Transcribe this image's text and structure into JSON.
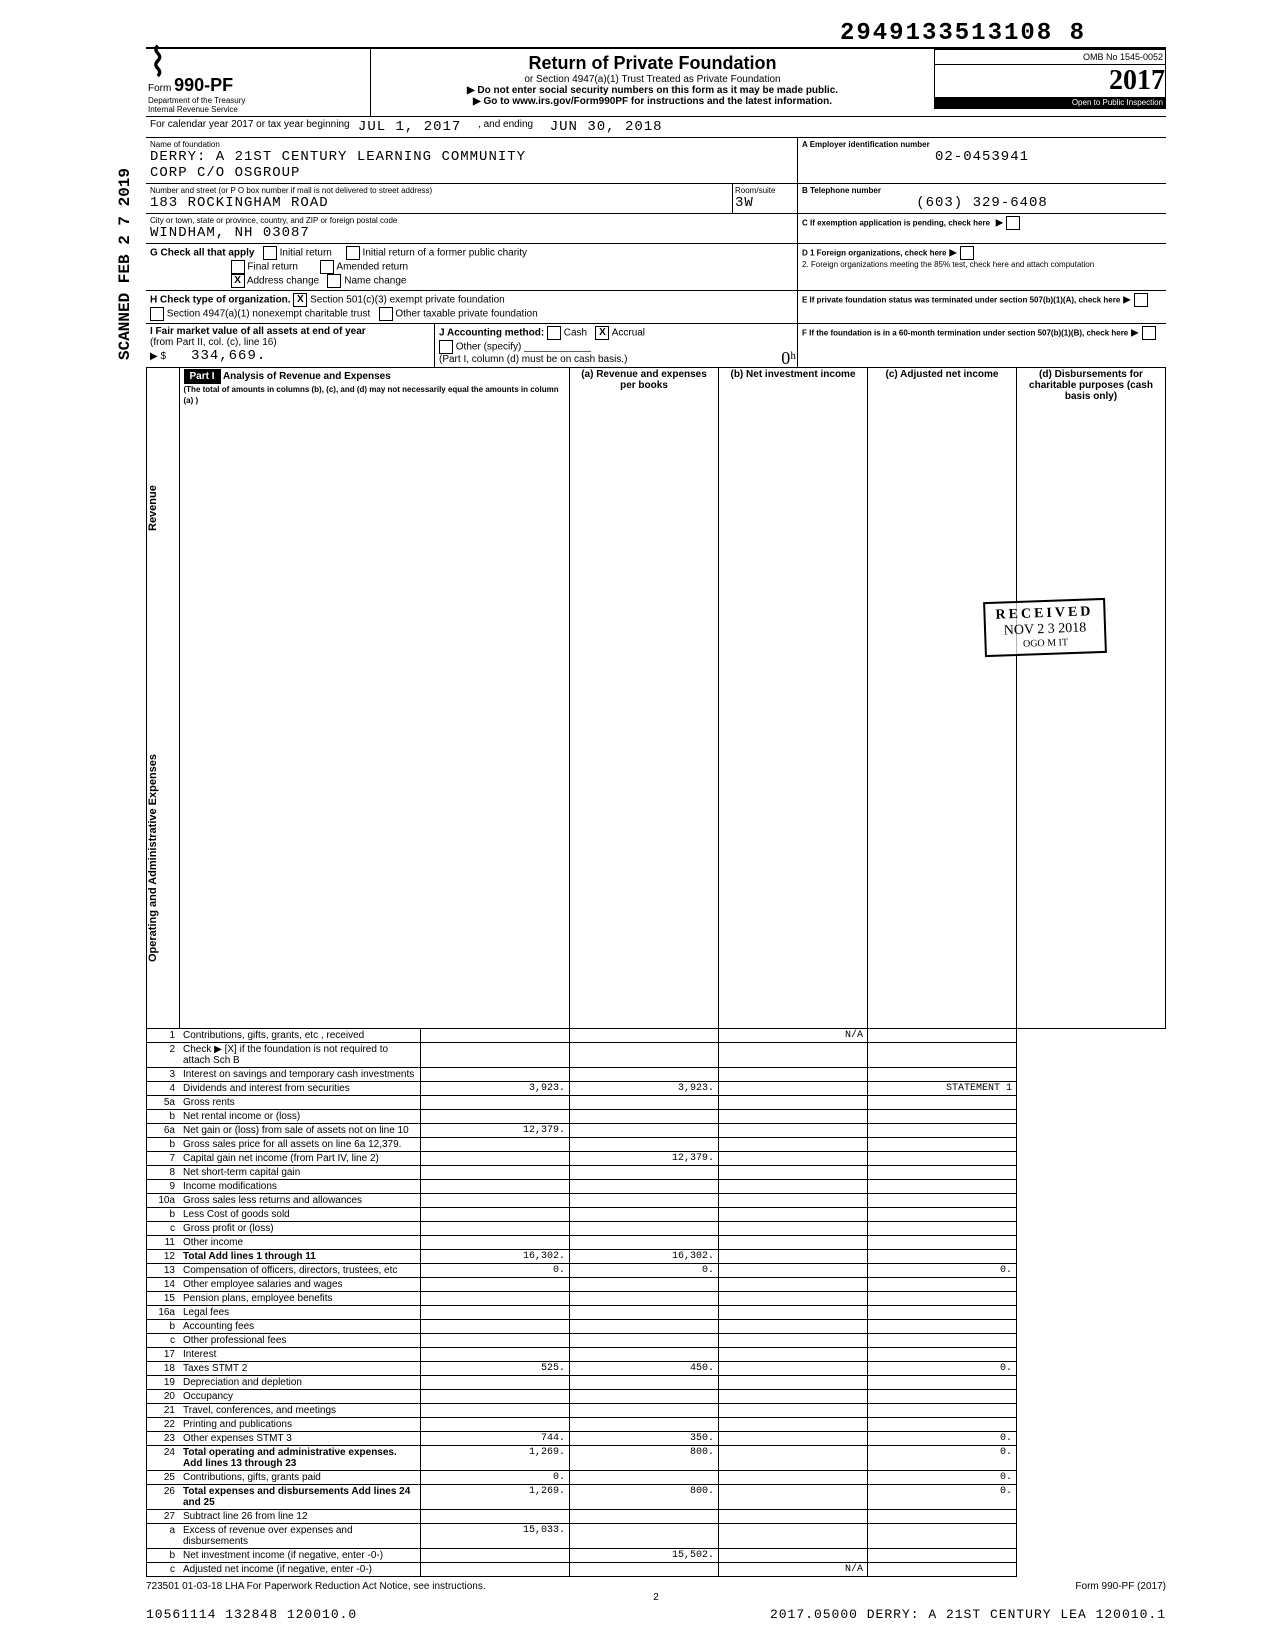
{
  "top_number": "2949133513108  8",
  "form": {
    "prefix": "Form",
    "number": "990-PF",
    "dept": "Department of the Treasury",
    "irs": "Internal Revenue Service"
  },
  "title": {
    "main": "Return of Private Foundation",
    "sub1": "or Section 4947(a)(1) Trust Treated as Private Foundation",
    "sub2": "▶ Do not enter social security numbers on this form as it may be made public.",
    "sub3": "▶ Go to www.irs.gov/Form990PF for instructions and the latest information."
  },
  "omb": "OMB No  1545-0052",
  "year": "2017",
  "inspection": "Open to Public Inspection",
  "calendar_line": "For calendar year 2017 or tax year beginning",
  "begin_date": "JUL 1, 2017",
  "and_ending": ", and ending",
  "end_date": "JUN 30, 2018",
  "name_label": "Name of foundation",
  "name1": "DERRY: A 21ST CENTURY LEARNING COMMUNITY",
  "name2": "CORP C/O OSGROUP",
  "ein_label": "A  Employer identification number",
  "ein": "02-0453941",
  "addr_label": "Number and street (or P O  box number if mail is not delivered to street address)",
  "addr": "183 ROCKINGHAM ROAD",
  "room_label": "Room/suite",
  "room": "3W",
  "tel_label": "B  Telephone number",
  "tel": "(603) 329-6408",
  "city_label": "City or town, state or province, country, and ZIP or foreign postal code",
  "city": "WINDHAM, NH   03087",
  "c_label": "C  If exemption application is pending, check here",
  "g_label": "G   Check all that apply",
  "g_initial": "Initial return",
  "g_initial_former": "Initial return of a former public charity",
  "g_final": "Final return",
  "g_amended": "Amended return",
  "g_address": "Address change",
  "g_name": "Name change",
  "d1": "D 1  Foreign organizations, check here",
  "d2": "2. Foreign organizations meeting the 85% test, check here and attach computation",
  "h_label": "H   Check type of organization.",
  "h_501c3": "Section 501(c)(3) exempt private foundation",
  "h_4947": "Section 4947(a)(1) nonexempt charitable trust",
  "h_other": "Other taxable private foundation",
  "e_label": "E  If private foundation status was terminated under section 507(b)(1)(A), check here",
  "i_label": "I  Fair market value of all assets at end of year",
  "i_sub": "(from Part II, col. (c), line 16)",
  "i_value": "334,669.",
  "j_label": "J   Accounting method:",
  "j_cash": "Cash",
  "j_accrual": "Accrual",
  "j_other": "Other (specify)",
  "j_note": "(Part I, column (d) must be on cash basis.)",
  "f_label": "F  If the foundation is in a 60-month termination under section 507(b)(1)(B), check here",
  "part1": {
    "label": "Part I",
    "title": "Analysis of Revenue and Expenses",
    "note": "(The total of amounts in columns (b), (c), and (d) may not necessarily equal the amounts in column (a) )",
    "col_a": "(a) Revenue and expenses per books",
    "col_b": "(b) Net investment income",
    "col_c": "(c) Adjusted net income",
    "col_d": "(d) Disbursements for charitable purposes (cash basis only)"
  },
  "side_revenue": "Revenue",
  "side_expenses": "Operating and Administrative Expenses",
  "rows": [
    {
      "n": "1",
      "d": "Contributions, gifts, grants, etc , received",
      "a": "",
      "b": "",
      "c": "N/A",
      "dd": ""
    },
    {
      "n": "2",
      "d": "Check ▶ [X] if the foundation is not required to attach Sch  B",
      "a": "",
      "b": "",
      "c": "",
      "dd": ""
    },
    {
      "n": "3",
      "d": "Interest on savings and temporary cash investments",
      "a": "",
      "b": "",
      "c": "",
      "dd": ""
    },
    {
      "n": "4",
      "d": "Dividends and interest from securities",
      "a": "3,923.",
      "b": "3,923.",
      "c": "",
      "dd": "STATEMENT 1"
    },
    {
      "n": "5a",
      "d": "Gross rents",
      "a": "",
      "b": "",
      "c": "",
      "dd": ""
    },
    {
      "n": "b",
      "d": "Net rental income or (loss)",
      "a": "",
      "b": "",
      "c": "",
      "dd": ""
    },
    {
      "n": "6a",
      "d": "Net gain or (loss) from sale of assets not on line 10",
      "a": "12,379.",
      "b": "",
      "c": "",
      "dd": ""
    },
    {
      "n": "b",
      "d": "Gross sales price for all assets on line 6a        12,379.",
      "a": "",
      "b": "",
      "c": "",
      "dd": ""
    },
    {
      "n": "7",
      "d": "Capital gain net income (from Part IV, line 2)",
      "a": "",
      "b": "12,379.",
      "c": "",
      "dd": ""
    },
    {
      "n": "8",
      "d": "Net short-term capital gain",
      "a": "",
      "b": "",
      "c": "",
      "dd": ""
    },
    {
      "n": "9",
      "d": "Income modifications",
      "a": "",
      "b": "",
      "c": "",
      "dd": ""
    },
    {
      "n": "10a",
      "d": "Gross sales less returns and allowances",
      "a": "",
      "b": "",
      "c": "",
      "dd": ""
    },
    {
      "n": "b",
      "d": "Less  Cost of goods sold",
      "a": "",
      "b": "",
      "c": "",
      "dd": ""
    },
    {
      "n": "c",
      "d": "Gross profit or (loss)",
      "a": "",
      "b": "",
      "c": "",
      "dd": ""
    },
    {
      "n": "11",
      "d": "Other income",
      "a": "",
      "b": "",
      "c": "",
      "dd": ""
    },
    {
      "n": "12",
      "d": "Total  Add lines 1 through 11",
      "a": "16,302.",
      "b": "16,302.",
      "c": "",
      "dd": ""
    },
    {
      "n": "13",
      "d": "Compensation of officers, directors, trustees, etc",
      "a": "0.",
      "b": "0.",
      "c": "",
      "dd": "0."
    },
    {
      "n": "14",
      "d": "Other employee salaries and wages",
      "a": "",
      "b": "",
      "c": "",
      "dd": ""
    },
    {
      "n": "15",
      "d": "Pension plans, employee benefits",
      "a": "",
      "b": "",
      "c": "",
      "dd": ""
    },
    {
      "n": "16a",
      "d": "Legal fees",
      "a": "",
      "b": "",
      "c": "",
      "dd": ""
    },
    {
      "n": "b",
      "d": "Accounting fees",
      "a": "",
      "b": "",
      "c": "",
      "dd": ""
    },
    {
      "n": "c",
      "d": "Other professional fees",
      "a": "",
      "b": "",
      "c": "",
      "dd": ""
    },
    {
      "n": "17",
      "d": "Interest",
      "a": "",
      "b": "",
      "c": "",
      "dd": ""
    },
    {
      "n": "18",
      "d": "Taxes                          STMT 2",
      "a": "525.",
      "b": "450.",
      "c": "",
      "dd": "0."
    },
    {
      "n": "19",
      "d": "Depreciation and depletion",
      "a": "",
      "b": "",
      "c": "",
      "dd": ""
    },
    {
      "n": "20",
      "d": "Occupancy",
      "a": "",
      "b": "",
      "c": "",
      "dd": ""
    },
    {
      "n": "21",
      "d": "Travel, conferences, and meetings",
      "a": "",
      "b": "",
      "c": "",
      "dd": ""
    },
    {
      "n": "22",
      "d": "Printing and publications",
      "a": "",
      "b": "",
      "c": "",
      "dd": ""
    },
    {
      "n": "23",
      "d": "Other expenses                 STMT 3",
      "a": "744.",
      "b": "350.",
      "c": "",
      "dd": "0."
    },
    {
      "n": "24",
      "d": "Total operating and administrative expenses. Add lines 13 through 23",
      "a": "1,269.",
      "b": "800.",
      "c": "",
      "dd": "0."
    },
    {
      "n": "25",
      "d": "Contributions, gifts, grants paid",
      "a": "0.",
      "b": "",
      "c": "",
      "dd": "0."
    },
    {
      "n": "26",
      "d": "Total expenses and disbursements Add lines 24 and 25",
      "a": "1,269.",
      "b": "800.",
      "c": "",
      "dd": "0."
    },
    {
      "n": "27",
      "d": "Subtract line 26 from line 12",
      "a": "",
      "b": "",
      "c": "",
      "dd": ""
    },
    {
      "n": "a",
      "d": "Excess of revenue over expenses and disbursements",
      "a": "15,033.",
      "b": "",
      "c": "",
      "dd": ""
    },
    {
      "n": "b",
      "d": "Net investment income (if negative, enter -0-)",
      "a": "",
      "b": "15,502.",
      "c": "",
      "dd": ""
    },
    {
      "n": "c",
      "d": "Adjusted net income (if negative, enter -0-)",
      "a": "",
      "b": "",
      "c": "N/A",
      "dd": ""
    }
  ],
  "footer_left": "723501  01-03-18   LHA  For Paperwork Reduction Act Notice, see instructions.",
  "footer_right": "Form 990-PF (2017)",
  "page_num": "2",
  "bottom_left": "10561114 132848 120010.0",
  "bottom_right": "2017.05000 DERRY: A 21ST CENTURY LEA 120010.1",
  "side_stamp": "SCANNED FEB 2 7 2019",
  "recv_stamp": {
    "l1": "RECEIVED",
    "l2": "NOV 2 3 2018",
    "l3": "OGO M  IT"
  }
}
